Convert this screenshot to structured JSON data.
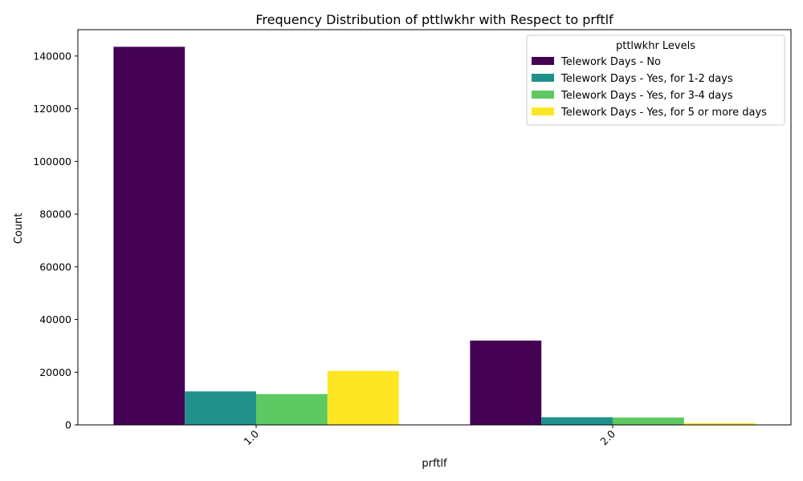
{
  "chart_data": {
    "type": "bar",
    "title": "Frequency Distribution of pttlwkhr with Respect to prftlf",
    "xlabel": "prftlf",
    "ylabel": "Count",
    "categories": [
      "1.0",
      "2.0"
    ],
    "ylim": [
      0,
      150000
    ],
    "yticks": [
      0,
      20000,
      40000,
      60000,
      80000,
      100000,
      120000,
      140000
    ],
    "legend_title": "pttlwkhr Levels",
    "legend_position": "top-right",
    "grid": false,
    "series": [
      {
        "name": "Telework Days - No",
        "color": "#440154",
        "values": [
          143500,
          32000
        ]
      },
      {
        "name": "Telework Days - Yes, for 1-2 days",
        "color": "#21918c",
        "values": [
          12700,
          2900
        ]
      },
      {
        "name": "Telework Days - Yes, for 3-4 days",
        "color": "#5ec962",
        "values": [
          11700,
          2800
        ]
      },
      {
        "name": "Telework Days - Yes, for 5 or more days",
        "color": "#fde725",
        "values": [
          20500,
          700
        ]
      }
    ]
  }
}
